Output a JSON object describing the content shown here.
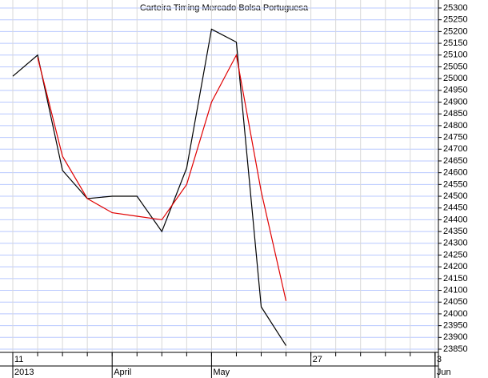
{
  "chart_data": {
    "type": "line",
    "title": "Carteira Timing Mercado Bolsa Portuguesa",
    "categories": [
      "11",
      null,
      null,
      null,
      null,
      null,
      null,
      null,
      null,
      null,
      null,
      null,
      "27",
      null,
      null,
      null,
      null,
      "3"
    ],
    "period_labels": [
      "2013",
      null,
      null,
      null,
      "April",
      null,
      null,
      null,
      "May",
      null,
      null,
      null,
      null,
      null,
      null,
      null,
      null,
      "Jun"
    ],
    "series": [
      {
        "color": "#000000",
        "values": [
          25010,
          25100,
          24610,
          24490,
          24500,
          24500,
          24350,
          24620,
          25210,
          25155,
          24030,
          23865,
          null,
          null,
          null,
          null,
          null,
          null
        ]
      },
      {
        "color": "#e00000",
        "values": [
          null,
          25090,
          24670,
          24490,
          24430,
          24415,
          24400,
          24550,
          24900,
          25100,
          24520,
          24055,
          null,
          null,
          null,
          null,
          null,
          null
        ]
      }
    ],
    "ylim": [
      23850,
      25300
    ],
    "yticks": [
      23850,
      23900,
      23950,
      24000,
      24050,
      24100,
      24150,
      24200,
      24250,
      24300,
      24350,
      24400,
      24450,
      24500,
      24550,
      24600,
      24650,
      24700,
      24750,
      24800,
      24850,
      24900,
      24950,
      25000,
      25050,
      25100,
      25150,
      25200,
      25250,
      25300
    ],
    "grid": true,
    "y_axis_side": "right"
  }
}
